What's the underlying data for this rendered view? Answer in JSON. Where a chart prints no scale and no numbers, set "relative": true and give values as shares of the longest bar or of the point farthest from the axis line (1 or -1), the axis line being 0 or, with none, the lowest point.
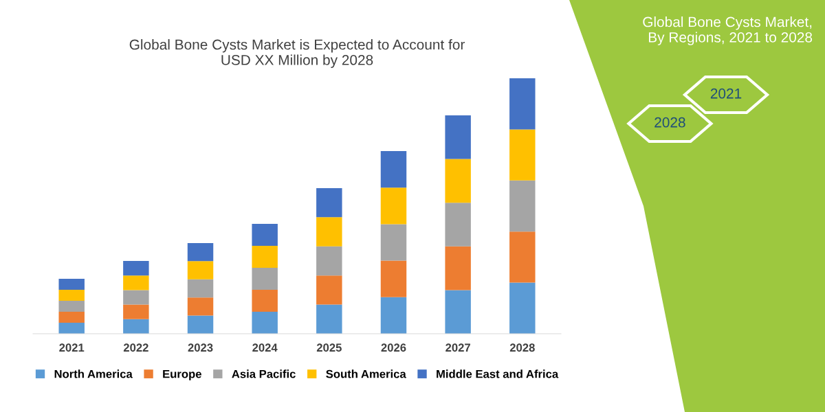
{
  "chart_data": {
    "type": "bar",
    "title": "Global Bone Cysts Market is Expected to Account for\nUSD XX Million by 2028",
    "categories": [
      "2021",
      "2022",
      "2023",
      "2024",
      "2025",
      "2026",
      "2027",
      "2028"
    ],
    "stacked": true,
    "relative": true,
    "legend": "bottom",
    "grid": false,
    "series": [
      {
        "name": "North America",
        "color": "#5b9bd5",
        "values": [
          0.043,
          0.057,
          0.071,
          0.086,
          0.114,
          0.143,
          0.171,
          0.2
        ]
      },
      {
        "name": "Europe",
        "color": "#ed7d31",
        "values": [
          0.043,
          0.057,
          0.071,
          0.086,
          0.114,
          0.143,
          0.171,
          0.2
        ]
      },
      {
        "name": "Asia Pacific",
        "color": "#a5a5a5",
        "values": [
          0.043,
          0.057,
          0.071,
          0.086,
          0.114,
          0.143,
          0.171,
          0.2
        ]
      },
      {
        "name": "South America",
        "color": "#ffc000",
        "values": [
          0.043,
          0.057,
          0.071,
          0.086,
          0.114,
          0.143,
          0.171,
          0.2
        ]
      },
      {
        "name": "Middle East and Africa",
        "color": "#4472c4",
        "values": [
          0.043,
          0.057,
          0.071,
          0.086,
          0.114,
          0.143,
          0.171,
          0.2
        ]
      }
    ],
    "annotations": [
      "Global Bone Cysts Market,\nBy Regions, 2021 to 2028",
      "2021",
      "2028"
    ]
  }
}
